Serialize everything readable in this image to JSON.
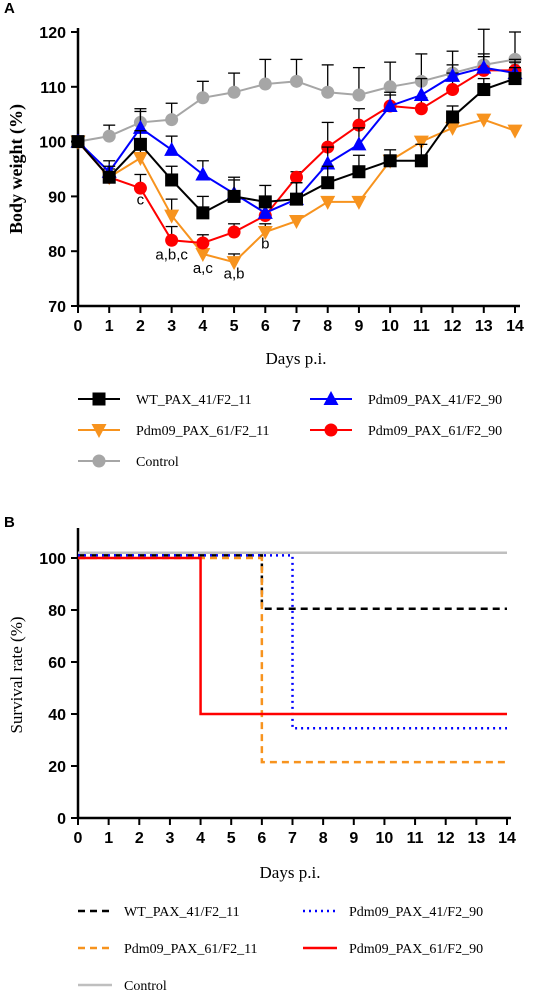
{
  "chart_data": [
    {
      "type": "line",
      "panel_label": "A",
      "xlabel": "Days p.i.",
      "ylabel": "Body weight (%)",
      "xlim": [
        0,
        14
      ],
      "ylim": [
        70,
        120
      ],
      "x_ticks": [
        0,
        1,
        2,
        3,
        4,
        5,
        6,
        7,
        8,
        9,
        10,
        11,
        12,
        13,
        14
      ],
      "y_ticks": [
        70,
        80,
        90,
        100,
        110,
        120
      ],
      "grid": false,
      "legend_position": "bottom",
      "x": [
        0,
        1,
        2,
        3,
        4,
        5,
        6,
        7,
        8,
        9,
        10,
        11,
        12,
        13,
        14
      ],
      "series": [
        {
          "name": "WT_PAX_41/F2_11",
          "color": "#000000",
          "marker": "square",
          "values": [
            100,
            93.5,
            99.5,
            93,
            87,
            90,
            89,
            89.5,
            92.5,
            94.5,
            96.5,
            96.5,
            104.5,
            109.5,
            111.5
          ],
          "errors": [
            0,
            2,
            2.5,
            2.5,
            3,
            3,
            3,
            3,
            3,
            3,
            2,
            3,
            2,
            2,
            2
          ]
        },
        {
          "name": "Pdm09_PAX_41/F2_90",
          "color": "#0000FF",
          "marker": "triangle-up",
          "values": [
            100,
            94.5,
            102.5,
            98.5,
            94,
            90.5,
            87,
            89.5,
            96,
            99.5,
            106.5,
            108.5,
            112,
            113.5,
            112.5
          ],
          "errors": [
            0,
            2,
            3,
            2.5,
            2.5,
            3,
            3,
            3,
            3,
            3,
            2,
            3,
            2,
            2,
            2
          ]
        },
        {
          "name": "Pdm09_PAX_61/F2_11",
          "color": "#F7931E",
          "marker": "triangle-down",
          "values": [
            100,
            93.5,
            97,
            86.5,
            79.5,
            78,
            83.5,
            85.5,
            89,
            89,
            96.5,
            100,
            102.5,
            104,
            102
          ],
          "errors": [
            0,
            1,
            1.5,
            3,
            2,
            1.5,
            1.5,
            0,
            0,
            0,
            0,
            0,
            0,
            0,
            0
          ]
        },
        {
          "name": "Pdm09_PAX_61/F2_90",
          "color": "#FF0000",
          "marker": "circle",
          "values": [
            100,
            93.5,
            91.5,
            82,
            81.5,
            83.5,
            86.5,
            93.5,
            99,
            103,
            106.5,
            106,
            109.5,
            113,
            113
          ],
          "errors": [
            0,
            1.5,
            2.5,
            2.5,
            1.5,
            1.5,
            1.5,
            1,
            4.5,
            3,
            2.5,
            2,
            3,
            3,
            2
          ]
        },
        {
          "name": "Control",
          "color": "#A6A6A6",
          "marker": "circle",
          "values": [
            100,
            101,
            103.5,
            104,
            108,
            109,
            110.5,
            111,
            109,
            108.5,
            110,
            111,
            112.5,
            114,
            115
          ],
          "errors": [
            0,
            2,
            2.5,
            3,
            3,
            3.5,
            4.5,
            4,
            5,
            5,
            4.5,
            5,
            4,
            6.5,
            5
          ]
        }
      ],
      "annotations": [
        {
          "text": "c",
          "x": 2,
          "y": 88.5
        },
        {
          "text": "a,b,c",
          "x": 3,
          "y": 78.5
        },
        {
          "text": "a,c",
          "x": 4,
          "y": 76
        },
        {
          "text": "a,b",
          "x": 5,
          "y": 75
        },
        {
          "text": "b",
          "x": 6,
          "y": 80.5
        }
      ]
    },
    {
      "type": "line",
      "panel_label": "B",
      "xlabel": "Days p.i.",
      "ylabel": "Survival rate (%)",
      "xlim": [
        0,
        14
      ],
      "ylim": [
        0,
        110
      ],
      "x_ticks": [
        0,
        1,
        2,
        3,
        4,
        5,
        6,
        7,
        8,
        9,
        10,
        11,
        12,
        13,
        14
      ],
      "y_ticks": [
        0,
        20,
        40,
        60,
        80,
        100
      ],
      "grid": false,
      "legend_position": "bottom",
      "step": true,
      "series": [
        {
          "name": "WT_PAX_41/F2_11",
          "color": "#000000",
          "dash": "dashed",
          "points": [
            [
              0,
              101
            ],
            [
              6,
              101
            ],
            [
              6,
              80.5
            ],
            [
              14,
              80.5
            ]
          ]
        },
        {
          "name": "Pdm09_PAX_41/F2_90",
          "color": "#0000FF",
          "dash": "dotted",
          "points": [
            [
              0,
              101
            ],
            [
              7,
              101
            ],
            [
              7,
              34.5
            ],
            [
              14,
              34.5
            ]
          ]
        },
        {
          "name": "Pdm09_PAX_61/F2_11",
          "color": "#F7931E",
          "dash": "dashed",
          "points": [
            [
              0,
              100
            ],
            [
              6,
              100
            ],
            [
              6,
              21.5
            ],
            [
              14,
              21.5
            ]
          ]
        },
        {
          "name": "Pdm09_PAX_61/F2_90",
          "color": "#FF0000",
          "dash": "solid",
          "points": [
            [
              0,
              100
            ],
            [
              4,
              100
            ],
            [
              4,
              40
            ],
            [
              14,
              40
            ]
          ]
        },
        {
          "name": "Control",
          "color": "#BFBFBF",
          "dash": "solid",
          "points": [
            [
              0,
              102
            ],
            [
              14,
              102
            ]
          ]
        }
      ]
    }
  ]
}
